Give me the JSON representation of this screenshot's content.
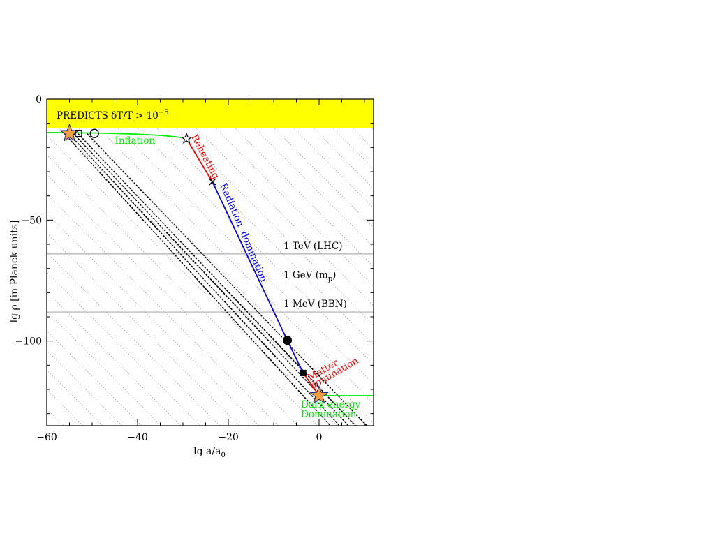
{
  "chart_data": {
    "type": "line",
    "title": "",
    "xlabel": "lg a/a",
    "xlabel_sub": "0",
    "ylabel": "lg ρ [in Planck units]",
    "xlim": [
      -60,
      12
    ],
    "ylim": [
      -135,
      0
    ],
    "xticks": [
      -60,
      -40,
      -20,
      0
    ],
    "xtick_labels": [
      "−60",
      "−40",
      "−20",
      "0"
    ],
    "yticks": [
      0,
      -50,
      -100
    ],
    "ytick_labels": [
      "0",
      "−50",
      "−100"
    ],
    "grid": false,
    "excluded_band": {
      "label": "PREDICTS δT/T > 10",
      "label_exp": "−5",
      "y_range": [
        -12,
        0
      ],
      "color": "#ffff00"
    },
    "energy_lines": [
      {
        "label": "1 TeV (LHC)",
        "y": -64
      },
      {
        "label": "1 GeV (m",
        "label_sub": "p",
        "label_end": ")",
        "y": -76
      },
      {
        "label": "1 MeV (BBN)",
        "y": -88
      }
    ],
    "series": [
      {
        "name": "Inflation",
        "color": "#00ee00",
        "x": [
          -60,
          -55,
          -50,
          -45,
          -40,
          -35,
          -32,
          -30,
          -29
        ],
        "y": [
          -13.8,
          -13.9,
          -14.0,
          -14.2,
          -14.5,
          -15.0,
          -15.5,
          -16.0,
          -16.4
        ]
      },
      {
        "name": "Reheating",
        "color": "#ff0000",
        "x": [
          -29.2,
          -23.5
        ],
        "y": [
          -16.4,
          -34.2
        ]
      },
      {
        "name": "Radiation domination",
        "color": "#0000ff",
        "x": [
          -23.5,
          -7,
          -3.5
        ],
        "y": [
          -34.2,
          -99.7,
          -113.2
        ]
      },
      {
        "name": "Matter domination",
        "color": "#ff0000",
        "x": [
          -3.5,
          0
        ],
        "y": [
          -113.2,
          -122.5
        ]
      },
      {
        "name": "Dark energy Domination",
        "color": "#00ee00",
        "x": [
          0,
          3,
          6,
          9,
          12
        ],
        "y": [
          -122.5,
          -122.6,
          -122.6,
          -122.6,
          -122.6
        ]
      }
    ],
    "dotted_tracks": [
      {
        "x": [
          -55,
          4.5
        ],
        "y": [
          -14.5,
          -135
        ]
      },
      {
        "x": [
          -54,
          6.5
        ],
        "y": [
          -14.5,
          -135
        ]
      },
      {
        "x": [
          -53,
          8.0
        ],
        "y": [
          -14.5,
          -135
        ]
      },
      {
        "x": [
          -51,
          10.5
        ],
        "y": [
          -14.5,
          -135
        ]
      },
      {
        "x": [
          -56,
          2.5
        ],
        "y": [
          -14.5,
          -135
        ]
      }
    ],
    "markers": [
      {
        "name": "star-start",
        "shape": "big-star",
        "x": -55,
        "y": -14.2,
        "color": "#f5a040"
      },
      {
        "name": "open-square",
        "shape": "open-square",
        "x": -53,
        "y": -14.2
      },
      {
        "name": "open-circle",
        "shape": "open-circle",
        "x": -49.5,
        "y": -14.2
      },
      {
        "name": "open-star",
        "shape": "open-star",
        "x": -29.2,
        "y": -16.4
      },
      {
        "name": "cross",
        "shape": "cross",
        "x": -23.5,
        "y": -34.2
      },
      {
        "name": "filled-circle",
        "shape": "filled-circle",
        "x": -7,
        "y": -99.7
      },
      {
        "name": "filled-square",
        "shape": "filled-square",
        "x": -3.5,
        "y": -113.2
      },
      {
        "name": "star-today",
        "shape": "big-star",
        "x": 0,
        "y": -122.5,
        "color": "#f5a040"
      }
    ],
    "annotations": [
      {
        "text": "Inflation",
        "color": "#00ee00",
        "x": -45,
        "y": -18.5,
        "rotate": 0
      },
      {
        "text": "Reheating",
        "color": "#ff0000",
        "x": -28.2,
        "y": -15.5,
        "rotate": 62
      },
      {
        "text": "Radiation  domination",
        "color": "#0000ff",
        "x": -21.8,
        "y": -35.5,
        "rotate": 67
      },
      {
        "text": "Matter",
        "color": "#ff0000",
        "x": -2.0,
        "y": -116.5,
        "rotate": -30
      },
      {
        "text": "domination",
        "color": "#ff0000",
        "x": -1.5,
        "y": -120.0,
        "rotate": -30
      },
      {
        "text": "Dark energy",
        "color": "#00ee00",
        "x": -4,
        "y": -127.5,
        "rotate": 0
      },
      {
        "text": "Domination",
        "color": "#00ee00",
        "x": -4,
        "y": -131.5,
        "rotate": 0
      }
    ]
  }
}
